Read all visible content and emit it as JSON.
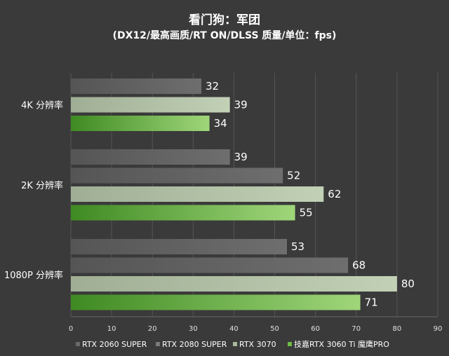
{
  "chart_data": {
    "type": "bar",
    "orientation": "horizontal",
    "title": "看门狗：军团",
    "subtitle": "(DX12/最高画质/RT ON/DLSS 质量/单位：fps)",
    "categories": [
      "4K 分辨率",
      "2K 分辨率",
      "1080P 分辨率"
    ],
    "series": [
      {
        "name": "RTX 2060 SUPER",
        "values": [
          32,
          39,
          53
        ],
        "color": "#5e5e5e"
      },
      {
        "name": "RTX 2080 SUPER",
        "values": [
          null,
          52,
          68
        ],
        "color": "#6a6a6a"
      },
      {
        "name": "RTX 3070",
        "values": [
          39,
          62,
          80
        ],
        "color": "#b7c9a9"
      },
      {
        "name": "技嘉RTX 3060 Ti 魔鹰PRO",
        "values": [
          34,
          55,
          71
        ],
        "color": "#7cc34e"
      }
    ],
    "xlim": [
      0,
      90
    ],
    "xticks": [
      0,
      10,
      20,
      30,
      40,
      50,
      60,
      70,
      80,
      90
    ],
    "grid": true,
    "legend": "bottom"
  }
}
